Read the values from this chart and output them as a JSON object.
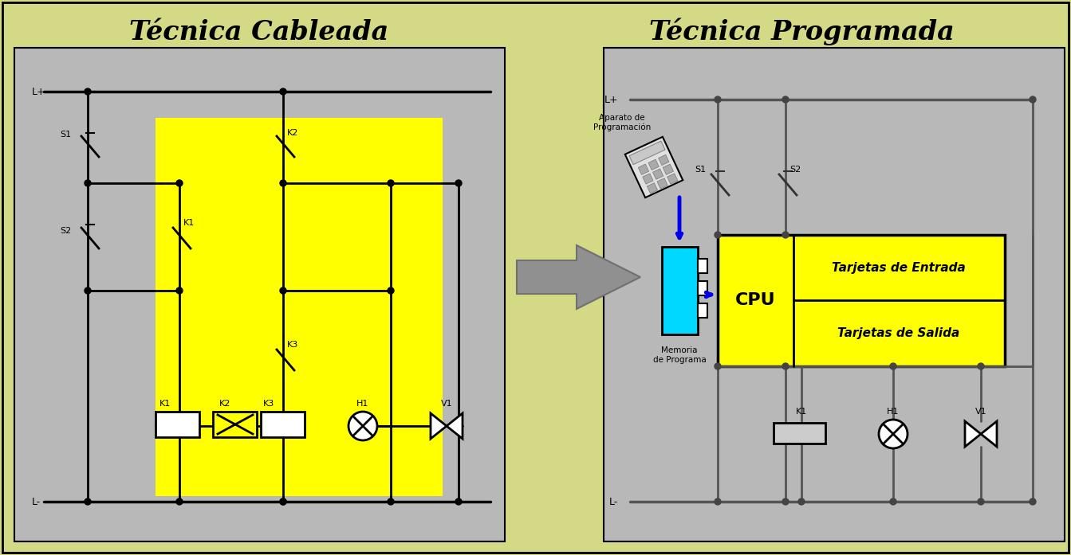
{
  "bg_color": "#d4d985",
  "panel_bg": "#b8b8b8",
  "yellow": "#ffff00",
  "black": "#000000",
  "white": "#ffffff",
  "blue": "#0000ee",
  "cyan": "#00d8ff",
  "gray_arrow": "#909090",
  "title_left": "Técnica Cableada",
  "title_right": "Técnica Programada",
  "cpu_text": "CPU",
  "entrada_text": "Tarjetas de Entrada",
  "salida_text": "Tarjetas de Salida",
  "aparato_text": "Aparato de\nProgramación",
  "memoria_text": "Memoria\nde Programa"
}
